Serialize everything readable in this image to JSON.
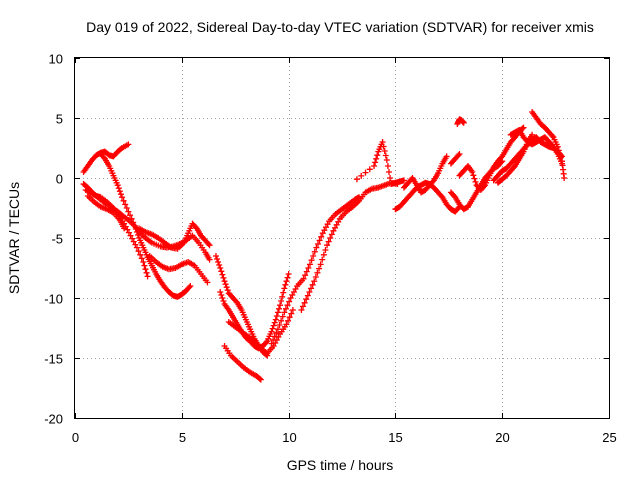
{
  "chart_data": {
    "type": "scatter",
    "title": "Day 019 of 2022, Sidereal Day-to-day VTEC variation (SDTVAR) for receiver xmis",
    "xlabel": "GPS time / hours",
    "ylabel": "SDTVAR / TECUs",
    "xlim": [
      0,
      25
    ],
    "ylim": [
      -20,
      10
    ],
    "xticks": [
      "0",
      "5",
      "10",
      "15",
      "20",
      "25"
    ],
    "yticks": [
      "10",
      "5",
      "0",
      "-5",
      "-10",
      "-15",
      "-20"
    ],
    "grid": true,
    "marker": "+",
    "marker_color": "#ff0000",
    "series": [
      {
        "x": [
          0.4,
          0.6,
          0.8,
          1.0,
          1.2,
          1.4,
          1.6,
          1.8,
          2.0,
          2.2,
          2.5
        ],
        "y": [
          0.5,
          1.0,
          1.5,
          1.9,
          2.1,
          2.2,
          1.9,
          1.8,
          2.2,
          2.5,
          2.8
        ]
      },
      {
        "x": [
          0.4,
          0.6,
          0.8,
          1.0,
          1.2,
          1.5,
          1.8,
          2.0,
          2.2,
          2.5,
          2.8,
          3.0,
          3.3,
          3.6,
          4.0,
          4.3,
          4.6,
          4.9,
          5.2,
          5.5,
          5.8,
          6.1,
          6.3
        ],
        "y": [
          -0.5,
          -0.8,
          -1.2,
          -1.5,
          -1.8,
          -2.2,
          -2.6,
          -2.8,
          -3.1,
          -3.5,
          -4.0,
          -4.5,
          -5.0,
          -5.4,
          -5.7,
          -5.8,
          -5.7,
          -5.5,
          -5.2,
          -4.8,
          -5.4,
          -6.2,
          -6.8
        ]
      },
      {
        "x": [
          0.5,
          0.8,
          1.0,
          1.2,
          1.5,
          1.8,
          2.0,
          2.3,
          2.6,
          2.9,
          3.2,
          3.4
        ],
        "y": [
          -1.0,
          -1.3,
          -1.5,
          -1.6,
          -2.0,
          -2.5,
          -3.0,
          -3.8,
          -4.8,
          -5.8,
          -7.0,
          -8.2
        ]
      },
      {
        "x": [
          0.6,
          0.9,
          1.2,
          1.5,
          1.8,
          2.1,
          2.3
        ],
        "y": [
          -1.5,
          -2.0,
          -2.4,
          -2.6,
          -2.9,
          -3.5,
          -4.2
        ]
      },
      {
        "x": [
          1.2,
          1.4,
          1.6,
          1.8,
          2.0,
          2.2,
          2.5,
          2.8,
          3.0,
          3.2,
          3.4,
          3.6,
          3.8,
          4.0,
          4.2,
          4.4,
          4.6,
          4.8,
          5.0,
          5.2,
          5.4
        ],
        "y": [
          2.0,
          1.6,
          1.0,
          0.2,
          -0.6,
          -1.6,
          -2.8,
          -4.0,
          -5.0,
          -5.8,
          -6.6,
          -7.3,
          -8.0,
          -8.6,
          -9.1,
          -9.5,
          -9.8,
          -9.9,
          -9.7,
          -9.4,
          -9.0
        ]
      },
      {
        "x": [
          3.0,
          3.3,
          3.6,
          3.9,
          4.2,
          4.5,
          4.8,
          5.1,
          5.3,
          5.5,
          5.7,
          5.9,
          6.1,
          6.3
        ],
        "y": [
          -4.2,
          -4.5,
          -4.7,
          -5.0,
          -5.4,
          -5.8,
          -5.9,
          -5.4,
          -4.6,
          -3.8,
          -4.2,
          -4.8,
          -5.2,
          -5.6
        ]
      },
      {
        "x": [
          3.5,
          3.8,
          4.1,
          4.4,
          4.7,
          5.0,
          5.3,
          5.6,
          5.9,
          6.2
        ],
        "y": [
          -6.5,
          -7.0,
          -7.4,
          -7.6,
          -7.5,
          -7.2,
          -7.0,
          -7.3,
          -8.0,
          -8.7
        ]
      },
      {
        "x": [
          6.8,
          7.0,
          7.2,
          7.4,
          7.6,
          7.8,
          8.0,
          8.2,
          8.4,
          8.6,
          8.8,
          9.0,
          9.2,
          9.4,
          9.6,
          9.8,
          10.0
        ],
        "y": [
          -9.5,
          -10.5,
          -11.0,
          -11.6,
          -12.2,
          -12.8,
          -13.3,
          -13.6,
          -14.0,
          -14.2,
          -14.0,
          -13.6,
          -12.8,
          -11.8,
          -10.6,
          -9.2,
          -8.0
        ]
      },
      {
        "x": [
          7.0,
          7.3,
          7.6,
          7.9,
          8.2,
          8.5,
          8.7
        ],
        "y": [
          -14.0,
          -14.8,
          -15.3,
          -15.8,
          -16.2,
          -16.5,
          -16.8
        ]
      },
      {
        "x": [
          7.2,
          7.5,
          7.8,
          8.1,
          8.4,
          8.7,
          9.0,
          9.3,
          9.6,
          9.9,
          10.2
        ],
        "y": [
          -12.0,
          -12.4,
          -12.8,
          -13.2,
          -13.6,
          -14.2,
          -14.6,
          -14.0,
          -13.0,
          -12.2,
          -11.0
        ]
      },
      {
        "x": [
          6.6,
          6.8,
          7.0,
          7.2,
          7.4,
          7.6,
          7.8,
          8.0,
          8.2,
          8.4,
          8.6,
          8.8,
          9.0
        ],
        "y": [
          -6.5,
          -7.5,
          -8.6,
          -9.6,
          -10.0,
          -10.4,
          -11.0,
          -11.8,
          -12.6,
          -13.4,
          -14.0,
          -14.5,
          -14.8
        ]
      },
      {
        "x": [
          9.2,
          9.5,
          9.8,
          10.1,
          10.4,
          10.7,
          11.0,
          11.3,
          11.6,
          11.9,
          12.2,
          12.5,
          12.8,
          13.1,
          13.3
        ],
        "y": [
          -13.8,
          -12.6,
          -11.2,
          -10.0,
          -9.0,
          -8.4,
          -7.2,
          -5.8,
          -4.6,
          -3.6,
          -3.0,
          -2.6,
          -2.2,
          -1.8,
          -1.6
        ]
      },
      {
        "x": [
          10.6,
          10.9,
          11.2,
          11.5,
          11.8,
          12.1,
          12.4,
          12.7,
          13.0,
          13.3,
          13.6,
          13.9,
          14.2,
          14.5,
          14.8,
          15.1
        ],
        "y": [
          -11.0,
          -9.8,
          -8.6,
          -7.2,
          -5.6,
          -4.4,
          -3.4,
          -2.8,
          -2.4,
          -1.9,
          -1.2,
          -0.9,
          -0.8,
          -0.6,
          -0.4,
          -0.5
        ]
      },
      {
        "x": [
          13.2,
          14.0,
          14.2,
          14.4,
          14.6,
          14.8,
          15.0,
          15.2,
          15.4
        ],
        "y": [
          -0.1,
          1.0,
          2.2,
          3.0,
          1.5,
          -0.5,
          -0.4,
          -0.3,
          -0.2
        ]
      },
      {
        "x": [
          15.0,
          15.2,
          15.4,
          15.6,
          15.8,
          16.0,
          16.2,
          16.4,
          16.6,
          16.8,
          17.0,
          17.2,
          17.4,
          17.6,
          17.8,
          18.0
        ],
        "y": [
          -2.6,
          -2.4,
          -2.0,
          -1.6,
          -1.2,
          -0.8,
          -0.6,
          -0.4,
          -0.5,
          -0.8,
          -1.2,
          -1.6,
          -2.2,
          -2.6,
          -2.8,
          -2.4
        ]
      },
      {
        "x": [
          15.4,
          15.6,
          15.8,
          16.0,
          16.2,
          16.4,
          16.6,
          16.8,
          17.0,
          17.2,
          17.4
        ],
        "y": [
          -0.8,
          -0.4,
          0.0,
          -0.6,
          -1.2,
          -1.0,
          -0.6,
          -0.2,
          0.4,
          1.2,
          1.8
        ]
      },
      {
        "x": [
          17.6,
          17.8,
          18.0,
          18.2,
          18.4,
          18.6,
          18.8,
          19.0,
          19.2,
          19.4,
          19.6,
          19.8,
          20.0
        ],
        "y": [
          -1.2,
          -1.6,
          -2.2,
          -2.6,
          -2.4,
          -1.8,
          -1.2,
          -0.6,
          0.0,
          0.4,
          0.8,
          1.0,
          1.4
        ]
      },
      {
        "x": [
          17.6,
          17.8,
          18.0
        ],
        "y": [
          1.2,
          1.6,
          2.0
        ]
      },
      {
        "x": [
          17.9,
          18.0,
          18.1,
          18.2
        ],
        "y": [
          4.5,
          4.9,
          4.8,
          4.6
        ]
      },
      {
        "x": [
          18.0,
          18.2,
          18.4,
          18.6,
          18.8,
          19.0,
          19.2,
          19.4,
          19.6,
          19.8,
          20.0,
          20.2,
          20.4,
          20.6,
          20.8,
          21.0
        ],
        "y": [
          0.2,
          0.6,
          1.0,
          0.5,
          -0.6,
          -1.0,
          -0.6,
          0.2,
          0.9,
          1.4,
          1.8,
          2.4,
          3.0,
          3.4,
          3.9,
          4.2
        ]
      },
      {
        "x": [
          19.6,
          19.8,
          20.0,
          20.2,
          20.4,
          20.6,
          20.8,
          21.0,
          21.2,
          21.4,
          21.6,
          21.8,
          22.0,
          22.2,
          22.4,
          22.6,
          22.8
        ],
        "y": [
          -0.2,
          0.2,
          0.6,
          0.8,
          1.2,
          1.6,
          2.0,
          2.4,
          2.8,
          3.2,
          3.4,
          3.0,
          2.8,
          2.6,
          2.5,
          2.2,
          1.8
        ]
      },
      {
        "x": [
          19.8,
          20.0,
          20.2,
          20.4,
          20.6,
          20.8,
          21.0,
          21.2,
          21.4
        ],
        "y": [
          -0.4,
          -0.1,
          0.2,
          0.6,
          1.0,
          1.6,
          2.2,
          3.0,
          3.6
        ]
      },
      {
        "x": [
          21.4,
          21.6,
          21.8,
          22.0,
          22.2,
          22.4,
          22.6,
          22.8,
          22.9
        ],
        "y": [
          5.5,
          5.0,
          4.5,
          4.2,
          3.8,
          3.4,
          2.6,
          1.4,
          0.0
        ]
      },
      {
        "x": [
          20.4,
          20.6,
          20.8,
          21.0,
          21.2,
          21.4,
          21.6,
          21.8,
          22.0,
          22.2,
          22.4,
          22.6,
          22.8
        ],
        "y": [
          3.6,
          3.8,
          4.0,
          3.4,
          3.0,
          2.8,
          3.0,
          3.2,
          3.4,
          3.0,
          2.6,
          2.0,
          1.2
        ]
      }
    ]
  }
}
